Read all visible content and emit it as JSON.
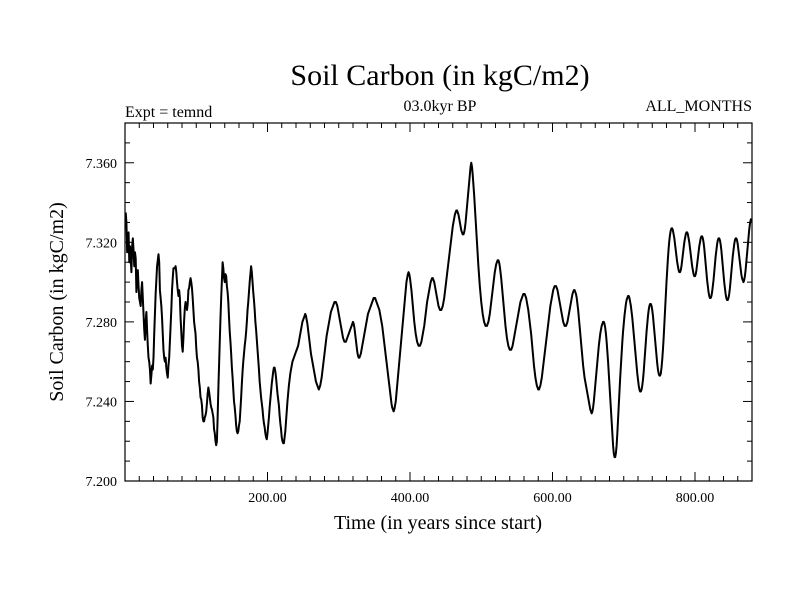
{
  "chart_data": {
    "type": "line",
    "title": "Soil Carbon (in kgC/m2)",
    "subtitle_left": "Expt = temnd",
    "subtitle_center": "03.0kyr BP",
    "subtitle_right": "ALL_MONTHS",
    "xlabel": "Time (in years since start)",
    "ylabel": "Soil Carbon (in kgC/m2)",
    "xlim": [
      0,
      880
    ],
    "ylim": [
      7.2,
      7.38
    ],
    "xticks": [
      200,
      400,
      600,
      800
    ],
    "xtick_labels": [
      "200.00",
      "400.00",
      "600.00",
      "800.00"
    ],
    "yticks": [
      7.2,
      7.24,
      7.28,
      7.32,
      7.36
    ],
    "ytick_labels": [
      "7.200",
      "7.240",
      "7.280",
      "7.320",
      "7.360"
    ],
    "series": [
      {
        "name": "Soil Carbon",
        "color": "#000000",
        "x_start": 1,
        "x_step": 1,
        "values": [
          7.335,
          7.33,
          7.315,
          7.32,
          7.325,
          7.31,
          7.318,
          7.312,
          7.305,
          7.318,
          7.322,
          7.316,
          7.308,
          7.315,
          7.312,
          7.295,
          7.302,
          7.306,
          7.298,
          7.292,
          7.29,
          7.288,
          7.296,
          7.3,
          7.292,
          7.284,
          7.276,
          7.271,
          7.28,
          7.285,
          7.276,
          7.268,
          7.262,
          7.26,
          7.256,
          7.249,
          7.253,
          7.258,
          7.256,
          7.262,
          7.274,
          7.284,
          7.294,
          7.301,
          7.308,
          7.311,
          7.314,
          7.31,
          7.296,
          7.292,
          7.288,
          7.282,
          7.274,
          7.266,
          7.262,
          7.26,
          7.262,
          7.257,
          7.254,
          7.252,
          7.258,
          7.262,
          7.27,
          7.278,
          7.286,
          7.296,
          7.302,
          7.307,
          7.307,
          7.307,
          7.308,
          7.305,
          7.3,
          7.296,
          7.293,
          7.296,
          7.292,
          7.282,
          7.275,
          7.268,
          7.265,
          7.272,
          7.281,
          7.287,
          7.29,
          7.288,
          7.286,
          7.289,
          7.296,
          7.297,
          7.3,
          7.302,
          7.3,
          7.297,
          7.292,
          7.286,
          7.28,
          7.277,
          7.274,
          7.267,
          7.262,
          7.26,
          7.256,
          7.25,
          7.247,
          7.242,
          7.241,
          7.238,
          7.232,
          7.23,
          7.23,
          7.232,
          7.233,
          7.235,
          7.239,
          7.244,
          7.247,
          7.245,
          7.242,
          7.239,
          7.237,
          7.236,
          7.234,
          7.232,
          7.226,
          7.224,
          7.22,
          7.218,
          7.22,
          7.232,
          7.246,
          7.258,
          7.27,
          7.282,
          7.292,
          7.301,
          7.31,
          7.307,
          7.302,
          7.3,
          7.304,
          7.303,
          7.298,
          7.295,
          7.29,
          7.282,
          7.275,
          7.27,
          7.264,
          7.257,
          7.252,
          7.246,
          7.24,
          7.237,
          7.233,
          7.228,
          7.225,
          7.224,
          7.225,
          7.228,
          7.23,
          7.236,
          7.242,
          7.249,
          7.255,
          7.26,
          7.264,
          7.268,
          7.271,
          7.275,
          7.28,
          7.286,
          7.29,
          7.295,
          7.3,
          7.304,
          7.308,
          7.305,
          7.3,
          7.295,
          7.291,
          7.286,
          7.28,
          7.276,
          7.271,
          7.266,
          7.261,
          7.256,
          7.25,
          7.246,
          7.242,
          7.239,
          7.236,
          7.232,
          7.229,
          7.227,
          7.224,
          7.222,
          7.221,
          7.224,
          7.228,
          7.232,
          7.237,
          7.241,
          7.245,
          7.249,
          7.252,
          7.255,
          7.257,
          7.257,
          7.255,
          7.252,
          7.248,
          7.244,
          7.241,
          7.238,
          7.233,
          7.229,
          7.226,
          7.222,
          7.22,
          7.219,
          7.219,
          7.222,
          7.225,
          7.23,
          7.235,
          7.24,
          7.244,
          7.248,
          7.251,
          7.254,
          7.256,
          7.258,
          7.26,
          7.261,
          7.262,
          7.263,
          7.264,
          7.265,
          7.266,
          7.267,
          7.268,
          7.27,
          7.272,
          7.274,
          7.276,
          7.278,
          7.28,
          7.281,
          7.282,
          7.283,
          7.284,
          7.283,
          7.281,
          7.279,
          7.276,
          7.273,
          7.27,
          7.267,
          7.264,
          7.262,
          7.26,
          7.258,
          7.256,
          7.254,
          7.252,
          7.25,
          7.249,
          7.248,
          7.247,
          7.246,
          7.247,
          7.248,
          7.25,
          7.252,
          7.255,
          7.258,
          7.261,
          7.264,
          7.267,
          7.27,
          7.273,
          7.275,
          7.277,
          7.279,
          7.281,
          7.283,
          7.285,
          7.286,
          7.287,
          7.288,
          7.289,
          7.29,
          7.29,
          7.29,
          7.289,
          7.288,
          7.286,
          7.284,
          7.282,
          7.28,
          7.278,
          7.276,
          7.274,
          7.272,
          7.271,
          7.27,
          7.27,
          7.27,
          7.271,
          7.272,
          7.273,
          7.274,
          7.275,
          7.276,
          7.277,
          7.278,
          7.279,
          7.28,
          7.279,
          7.277,
          7.274,
          7.271,
          7.268,
          7.265,
          7.263,
          7.262,
          7.262,
          7.263,
          7.264,
          7.266,
          7.268,
          7.27,
          7.272,
          7.274,
          7.276,
          7.278,
          7.28,
          7.282,
          7.284,
          7.285,
          7.286,
          7.287,
          7.288,
          7.289,
          7.29,
          7.291,
          7.292,
          7.292,
          7.292,
          7.291,
          7.29,
          7.289,
          7.288,
          7.287,
          7.286,
          7.284,
          7.282,
          7.28,
          7.278,
          7.275,
          7.272,
          7.269,
          7.266,
          7.263,
          7.26,
          7.257,
          7.254,
          7.251,
          7.248,
          7.245,
          7.242,
          7.239,
          7.237,
          7.236,
          7.235,
          7.236,
          7.238,
          7.24,
          7.244,
          7.248,
          7.252,
          7.256,
          7.26,
          7.264,
          7.268,
          7.272,
          7.276,
          7.28,
          7.284,
          7.288,
          7.292,
          7.296,
          7.3,
          7.302,
          7.304,
          7.305,
          7.304,
          7.302,
          7.299,
          7.296,
          7.292,
          7.288,
          7.284,
          7.28,
          7.277,
          7.274,
          7.272,
          7.27,
          7.269,
          7.268,
          7.268,
          7.268,
          7.269,
          7.27,
          7.272,
          7.274,
          7.276,
          7.278,
          7.281,
          7.284,
          7.287,
          7.29,
          7.292,
          7.294,
          7.296,
          7.298,
          7.3,
          7.301,
          7.302,
          7.302,
          7.301,
          7.3,
          7.298,
          7.296,
          7.294,
          7.292,
          7.29,
          7.288,
          7.287,
          7.286,
          7.286,
          7.286,
          7.287,
          7.288,
          7.29,
          7.292,
          7.295,
          7.298,
          7.301,
          7.304,
          7.307,
          7.31,
          7.313,
          7.316,
          7.319,
          7.322,
          7.325,
          7.328,
          7.33,
          7.332,
          7.334,
          7.335,
          7.336,
          7.336,
          7.335,
          7.334,
          7.332,
          7.33,
          7.328,
          7.326,
          7.325,
          7.324,
          7.324,
          7.325,
          7.327,
          7.33,
          7.334,
          7.338,
          7.342,
          7.346,
          7.35,
          7.354,
          7.358,
          7.36,
          7.358,
          7.354,
          7.349,
          7.344,
          7.338,
          7.332,
          7.326,
          7.32,
          7.314,
          7.308,
          7.303,
          7.298,
          7.294,
          7.29,
          7.287,
          7.284,
          7.282,
          7.28,
          7.279,
          7.278,
          7.278,
          7.278,
          7.279,
          7.28,
          7.282,
          7.284,
          7.287,
          7.29,
          7.293,
          7.296,
          7.299,
          7.302,
          7.305,
          7.307,
          7.309,
          7.31,
          7.311,
          7.311,
          7.31,
          7.308,
          7.305,
          7.302,
          7.298,
          7.294,
          7.29,
          7.286,
          7.282,
          7.278,
          7.275,
          7.272,
          7.27,
          7.268,
          7.267,
          7.266,
          7.266,
          7.266,
          7.267,
          7.268,
          7.27,
          7.272,
          7.274,
          7.276,
          7.278,
          7.28,
          7.282,
          7.284,
          7.286,
          7.288,
          7.29,
          7.291,
          7.292,
          7.293,
          7.294,
          7.294,
          7.294,
          7.293,
          7.292,
          7.29,
          7.288,
          7.286,
          7.283,
          7.28,
          7.277,
          7.274,
          7.27,
          7.266,
          7.262,
          7.258,
          7.255,
          7.252,
          7.25,
          7.248,
          7.247,
          7.246,
          7.246,
          7.247,
          7.248,
          7.25,
          7.252,
          7.255,
          7.258,
          7.261,
          7.264,
          7.267,
          7.27,
          7.273,
          7.276,
          7.279,
          7.282,
          7.285,
          7.288,
          7.29,
          7.292,
          7.294,
          7.296,
          7.297,
          7.298,
          7.298,
          7.298,
          7.297,
          7.296,
          7.294,
          7.292,
          7.29,
          7.288,
          7.286,
          7.284,
          7.282,
          7.28,
          7.279,
          7.278,
          7.278,
          7.278,
          7.279,
          7.28,
          7.282,
          7.284,
          7.286,
          7.288,
          7.29,
          7.292,
          7.294,
          7.295,
          7.296,
          7.296,
          7.295,
          7.294,
          7.292,
          7.289,
          7.286,
          7.282,
          7.278,
          7.274,
          7.27,
          7.266,
          7.262,
          7.258,
          7.255,
          7.252,
          7.25,
          7.248,
          7.246,
          7.244,
          7.242,
          7.24,
          7.238,
          7.236,
          7.235,
          7.234,
          7.235,
          7.237,
          7.24,
          7.244,
          7.248,
          7.252,
          7.256,
          7.26,
          7.264,
          7.268,
          7.271,
          7.274,
          7.276,
          7.278,
          7.279,
          7.28,
          7.28,
          7.279,
          7.277,
          7.274,
          7.27,
          7.265,
          7.26,
          7.254,
          7.248,
          7.242,
          7.236,
          7.23,
          7.224,
          7.218,
          7.214,
          7.212,
          7.212,
          7.214,
          7.218,
          7.224,
          7.231,
          7.238,
          7.245,
          7.252,
          7.258,
          7.264,
          7.27,
          7.275,
          7.279,
          7.283,
          7.286,
          7.289,
          7.291,
          7.292,
          7.293,
          7.293,
          7.292,
          7.29,
          7.288,
          7.285,
          7.282,
          7.278,
          7.274,
          7.27,
          7.266,
          7.262,
          7.258,
          7.254,
          7.251,
          7.248,
          7.246,
          7.245,
          7.245,
          7.246,
          7.248,
          7.251,
          7.255,
          7.26,
          7.265,
          7.27,
          7.275,
          7.279,
          7.283,
          7.286,
          7.288,
          7.289,
          7.289,
          7.288,
          7.286,
          7.283,
          7.279,
          7.275,
          7.271,
          7.267,
          7.263,
          7.259,
          7.256,
          7.254,
          7.253,
          7.253,
          7.254,
          7.257,
          7.261,
          7.266,
          7.272,
          7.279,
          7.286,
          7.293,
          7.3,
          7.306,
          7.312,
          7.317,
          7.321,
          7.324,
          7.326,
          7.327,
          7.327,
          7.326,
          7.324,
          7.322,
          7.319,
          7.316,
          7.313,
          7.31,
          7.308,
          7.306,
          7.305,
          7.305,
          7.306,
          7.308,
          7.311,
          7.314,
          7.317,
          7.32,
          7.322,
          7.324,
          7.325,
          7.325,
          7.324,
          7.322,
          7.32,
          7.317,
          7.314,
          7.311,
          7.308,
          7.306,
          7.304,
          7.303,
          7.303,
          7.304,
          7.306,
          7.309,
          7.312,
          7.315,
          7.318,
          7.32,
          7.322,
          7.323,
          7.323,
          7.322,
          7.32,
          7.317,
          7.313,
          7.309,
          7.305,
          7.301,
          7.298,
          7.295,
          7.293,
          7.292,
          7.292,
          7.293,
          7.295,
          7.298,
          7.301,
          7.305,
          7.309,
          7.313,
          7.316,
          7.319,
          7.321,
          7.322,
          7.322,
          7.321,
          7.319,
          7.316,
          7.312,
          7.308,
          7.304,
          7.3,
          7.297,
          7.294,
          7.292,
          7.291,
          7.291,
          7.292,
          7.294,
          7.297,
          7.301,
          7.305,
          7.309,
          7.313,
          7.316,
          7.319,
          7.321,
          7.322,
          7.322,
          7.321,
          7.319,
          7.316,
          7.313,
          7.31,
          7.307,
          7.304,
          7.302,
          7.301,
          7.3,
          7.301,
          7.303,
          7.306,
          7.31,
          7.314,
          7.318,
          7.322,
          7.326,
          7.329,
          7.331,
          7.332
        ]
      }
    ]
  }
}
